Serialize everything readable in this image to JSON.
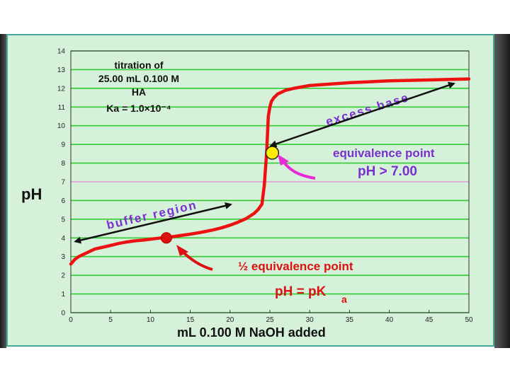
{
  "chart_data": {
    "type": "line",
    "title": "",
    "xlabel": "mL 0.100 M NaOH added",
    "ylabel": "pH",
    "xlim": [
      0,
      50
    ],
    "ylim": [
      0,
      14
    ],
    "x_ticks": [
      "0",
      "5",
      "10",
      "15",
      "20",
      "25",
      "30",
      "35",
      "40",
      "45",
      "50"
    ],
    "y_ticks": [
      "0",
      "1",
      "2",
      "3",
      "4",
      "5",
      "6",
      "7",
      "8",
      "9",
      "10",
      "11",
      "12",
      "13",
      "14"
    ],
    "grid": true,
    "highlight_gridline": 7,
    "series": [
      {
        "color": "#ee1111",
        "points": [
          [
            0,
            2.6
          ],
          [
            0.5,
            2.85
          ],
          [
            1,
            3.0
          ],
          [
            2,
            3.2
          ],
          [
            3,
            3.4
          ],
          [
            4,
            3.5
          ],
          [
            5,
            3.6
          ],
          [
            6,
            3.7
          ],
          [
            7,
            3.78
          ],
          [
            8,
            3.84
          ],
          [
            9,
            3.88
          ],
          [
            10,
            3.93
          ],
          [
            11,
            3.98
          ],
          [
            12,
            4.02
          ],
          [
            13,
            4.08
          ],
          [
            14,
            4.14
          ],
          [
            15,
            4.2
          ],
          [
            16,
            4.27
          ],
          [
            17,
            4.35
          ],
          [
            18,
            4.44
          ],
          [
            19,
            4.55
          ],
          [
            20,
            4.68
          ],
          [
            21,
            4.84
          ],
          [
            22,
            5.03
          ],
          [
            23,
            5.3
          ],
          [
            23.5,
            5.5
          ],
          [
            24,
            5.8
          ],
          [
            24.3,
            6.8
          ],
          [
            24.6,
            8.6
          ],
          [
            24.8,
            10.5
          ],
          [
            25,
            11.0
          ],
          [
            25.2,
            11.3
          ],
          [
            25.5,
            11.5
          ],
          [
            26,
            11.7
          ],
          [
            27,
            11.9
          ],
          [
            28,
            12.0
          ],
          [
            30,
            12.15
          ],
          [
            35,
            12.3
          ],
          [
            40,
            12.4
          ],
          [
            45,
            12.45
          ],
          [
            50,
            12.5
          ]
        ]
      }
    ],
    "markers": [
      {
        "x": 12.0,
        "y": 4.0,
        "color": "#dd1111"
      },
      {
        "x": 25.3,
        "y": 8.55,
        "color": "#ffee00"
      }
    ],
    "annotations": {
      "titration_lines": [
        "titration of",
        "25.00 mL 0.100 M",
        "HA",
        "Ka = 1.0×10⁻⁴"
      ],
      "excess_base": "excess base",
      "equivalence_point": "equivalence point",
      "ph_gt_7": "pH > 7.00",
      "buffer_region": "buffer region",
      "half_equivalence": "½ equivalence point",
      "ph_eq_pka": "pH = pK",
      "pka_subscript": "a"
    }
  }
}
